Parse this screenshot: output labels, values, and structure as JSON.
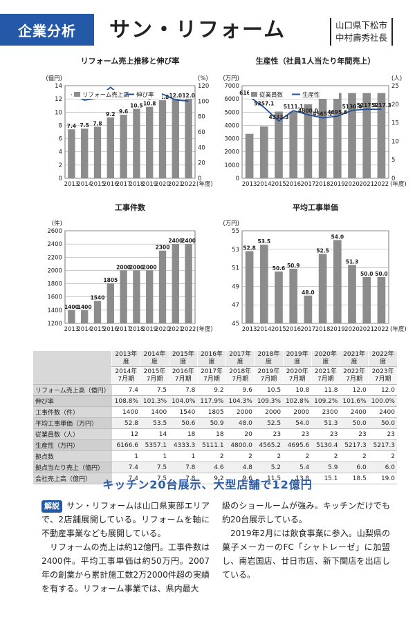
{
  "header": {
    "label": "企業分析",
    "company": "サン・リフォーム",
    "location": "山口県下松市",
    "person": "中村壽秀社長"
  },
  "years": [
    "2013",
    "2014",
    "2015",
    "2016",
    "2017",
    "2018",
    "2019",
    "2020",
    "2021",
    "2022"
  ],
  "year_unit": "(年度)",
  "chart_data": [
    {
      "type": "bar",
      "title": "リフォーム売上推移と伸び率",
      "ylabel": "(億円)",
      "y2label": "(%)",
      "ylim": [
        0,
        14
      ],
      "y2lim": [
        0,
        120
      ],
      "yticks": [
        0,
        2,
        4,
        6,
        8,
        10,
        12,
        14
      ],
      "y2ticks": [
        0,
        20,
        40,
        60,
        80,
        100,
        120
      ],
      "legend": [
        "リフォーム売上高",
        "伸び率"
      ],
      "values": [
        7.4,
        7.5,
        7.8,
        9.2,
        9.6,
        10.5,
        10.8,
        11.8,
        12.0,
        12.0
      ],
      "labels": [
        "7.4",
        "7.5",
        "7.8",
        "9.2",
        "9.6",
        "10.5",
        "10.8",
        "11.8",
        "12.0",
        "12.0"
      ],
      "line": [
        108.8,
        101.3,
        104.0,
        117.9,
        104.3,
        109.3,
        102.8,
        109.2,
        101.6,
        100.0
      ]
    },
    {
      "type": "bar",
      "title": "生産性（社員1人当たり年間売上）",
      "ylabel": "(万円)",
      "y2label": "(人)",
      "ylim": [
        0,
        7000
      ],
      "y2lim": [
        0,
        25
      ],
      "yticks": [
        0,
        1000,
        2000,
        3000,
        4000,
        5000,
        6000,
        7000
      ],
      "y2ticks": [
        0,
        5,
        10,
        15,
        20,
        25
      ],
      "legend": [
        "従業員数",
        "生産性"
      ],
      "values": [
        12,
        14,
        18,
        18,
        20,
        23,
        23,
        23,
        23,
        23
      ],
      "line": [
        6166.6,
        5357.1,
        4333.3,
        5111.1,
        4800.0,
        4565.2,
        4695.6,
        5130.4,
        5217.3,
        5217.3
      ],
      "line_labels": [
        "6166.6",
        "5357.1",
        "4333.3",
        "5111.1",
        "4800.0",
        "4565.2",
        "4695.6",
        "5130.4",
        "5217.3",
        "5217.3"
      ]
    },
    {
      "type": "bar",
      "title": "工事件数",
      "ylabel": "(件)",
      "ylim": [
        1200,
        2600
      ],
      "yticks": [
        1200,
        1400,
        1600,
        1800,
        2000,
        2200,
        2400,
        2600
      ],
      "values": [
        1400,
        1400,
        1540,
        1805,
        2000,
        2000,
        2000,
        2300,
        2400,
        2400
      ],
      "labels": [
        "1400",
        "1400",
        "1540",
        "1805",
        "2000",
        "2000",
        "2000",
        "2300",
        "2400",
        "2400"
      ]
    },
    {
      "type": "bar",
      "title": "平均工事単価",
      "ylabel": "(万円)",
      "ylim": [
        45,
        55
      ],
      "yticks": [
        45,
        47,
        49,
        51,
        53,
        55
      ],
      "values": [
        52.8,
        53.5,
        50.6,
        50.9,
        48.0,
        52.5,
        54.0,
        51.3,
        50.0,
        50.0
      ],
      "labels": [
        "52.8",
        "53.5",
        "50.6",
        "50.9",
        "48.0",
        "52.5",
        "54.0",
        "51.3",
        "50.0",
        "50.0"
      ]
    }
  ],
  "table": {
    "fy": [
      "2013年度",
      "2014年度",
      "2015年度",
      "2016年度",
      "2017年度",
      "2018年度",
      "2019年度",
      "2020年度",
      "2021年度",
      "2022年度"
    ],
    "period": [
      "2014年\n7月期",
      "2015年\n7月期",
      "2016年\n7月期",
      "2017年\n7月期",
      "2018年\n7月期",
      "2019年\n7月期",
      "2020年\n7月期",
      "2021年\n7月期",
      "2022年\n7月期",
      "2023年\n7月期"
    ],
    "rows": [
      {
        "label": "リフォーム売上高（億円）",
        "cells": [
          "7.4",
          "7.5",
          "7.8",
          "9.2",
          "9.6",
          "10.5",
          "10.8",
          "11.8",
          "12.0",
          "12.0"
        ]
      },
      {
        "label": "伸び率",
        "cells": [
          "108.8%",
          "101.3%",
          "104.0%",
          "117.9%",
          "104.3%",
          "109.3%",
          "102.8%",
          "109.2%",
          "101.6%",
          "100.0%"
        ]
      },
      {
        "label": "工事件数（件）",
        "cells": [
          "1400",
          "1400",
          "1540",
          "1805",
          "2000",
          "2000",
          "2000",
          "2300",
          "2400",
          "2400"
        ]
      },
      {
        "label": "平均工事単価（万円）",
        "cells": [
          "52.8",
          "53.5",
          "50.6",
          "50.9",
          "48.0",
          "52.5",
          "54.0",
          "51.3",
          "50.0",
          "50.0"
        ]
      },
      {
        "label": "従業員数（人）",
        "cells": [
          "12",
          "14",
          "18",
          "18",
          "20",
          "23",
          "23",
          "23",
          "23",
          "23"
        ]
      },
      {
        "label": "生産性（万円）",
        "cells": [
          "6166.6",
          "5357.1",
          "4333.3",
          "5111.1",
          "4800.0",
          "4565.2",
          "4695.6",
          "5130.4",
          "5217.3",
          "5217.3"
        ]
      },
      {
        "label": "拠点数",
        "cells": [
          "1",
          "1",
          "1",
          "2",
          "2",
          "2",
          "2",
          "2",
          "2",
          "2"
        ]
      },
      {
        "label": "拠点当たり売上（億円）",
        "cells": [
          "7.4",
          "7.5",
          "7.8",
          "4.6",
          "4.8",
          "5.2",
          "5.4",
          "5.9",
          "6.0",
          "6.0"
        ]
      },
      {
        "label": "会社売上高（億円）",
        "cells": [
          "7.4",
          "7.5",
          "7.8",
          "9.2",
          "9.6",
          "11.5",
          "13.8",
          "15.1",
          "18.5",
          "19.0"
        ]
      }
    ]
  },
  "article": {
    "headline": "キッチン20台展示、大型店舗で12億円",
    "tag": "解説",
    "left": [
      "サン・リフォームは山口県東部エリアで、2店舗展開している。リフォームを軸に不動産事業なども展開している。",
      "リフォームの売上は約12億円。工事件数は2400件。平均工事単価は約50万円。2007年の創業から累計施工数2万2000件超の実績を有する。リフォーム事業では、県内最大"
    ],
    "right": [
      "級のショールームが強み。キッチンだけでも約20台展示している。",
      "2019年2月には飲食事業に参入。山梨県の菓子メーカーのFC「シャトレーゼ」に加盟し、南岩国店、廿日市店、新下関店を出店している。"
    ]
  }
}
